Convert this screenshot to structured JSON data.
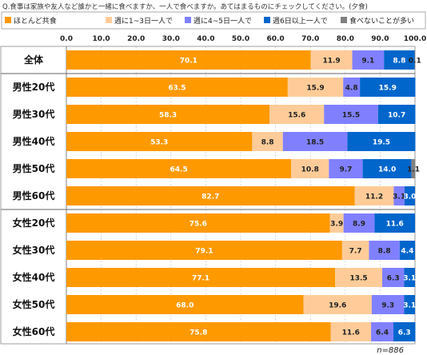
{
  "chart_data": {
    "type": "bar",
    "stacked": true,
    "orientation": "horizontal",
    "title": "Q.食事は家族や友人など誰かと一緒に食べますか、一人で食べますか。あてはまるものにチェックしてください。(夕食)",
    "categories": [
      "全体",
      "男性20代",
      "男性30代",
      "男性40代",
      "男性50代",
      "男性60代",
      "女性20代",
      "女性30代",
      "女性40代",
      "女性50代",
      "女性60代"
    ],
    "group_breaks_after": [
      0,
      5
    ],
    "series": [
      {
        "name": "ほとんど共食",
        "color": "#FF9900",
        "label_color": "#ffffff",
        "values": [
          70.1,
          63.5,
          58.3,
          53.3,
          64.5,
          82.7,
          75.6,
          79.1,
          77.1,
          68.0,
          75.8
        ]
      },
      {
        "name": "週に1~3日一人で",
        "color": "#FFCC99",
        "label_color": "#222222",
        "values": [
          11.9,
          15.9,
          15.6,
          8.8,
          10.8,
          11.2,
          3.9,
          7.7,
          13.5,
          19.6,
          11.6
        ]
      },
      {
        "name": "週に4~5日一人で",
        "color": "#8080FF",
        "label_color": "#222222",
        "values": [
          9.1,
          4.8,
          15.5,
          18.5,
          9.7,
          3.1,
          8.9,
          8.8,
          6.3,
          9.3,
          6.4
        ]
      },
      {
        "name": "週6日以上一人で",
        "color": "#0066CC",
        "label_color": "#ffffff",
        "values": [
          8.8,
          15.9,
          10.7,
          19.5,
          14.0,
          3.0,
          11.6,
          4.4,
          3.1,
          3.1,
          6.3
        ]
      },
      {
        "name": "食べないことが多い",
        "color": "#808080",
        "label_color": "#222222",
        "values": [
          0.1,
          0.0,
          0.0,
          0.0,
          1.1,
          0.0,
          0.0,
          0.0,
          0.0,
          0.0,
          0.0
        ]
      }
    ],
    "value_labels": [
      [
        "70.1",
        "11.9",
        "9.1",
        "8.8",
        "0.1"
      ],
      [
        "63.5",
        "15.9",
        "4.8",
        "15.9",
        ""
      ],
      [
        "58.3",
        "15.6",
        "15.5",
        "10.7",
        ""
      ],
      [
        "53.3",
        "8.8",
        "18.5",
        "19.5",
        ""
      ],
      [
        "64.5",
        "10.8",
        "9.7",
        "14.0",
        "1.1"
      ],
      [
        "82.7",
        "11.2",
        "3.1",
        "3.0",
        ""
      ],
      [
        "75.6",
        "3.9",
        "8.9",
        "11.6",
        ""
      ],
      [
        "79.1",
        "7.7",
        "8.8",
        "4.4",
        ""
      ],
      [
        "77.1",
        "13.5",
        "6.3",
        "3.1",
        ""
      ],
      [
        "68.0",
        "19.6",
        "9.3",
        "3.1",
        ""
      ],
      [
        "75.8",
        "11.6",
        "6.4",
        "6.3",
        ""
      ]
    ],
    "xlim": [
      0,
      100
    ],
    "x_ticks": [
      "0.0",
      "10.0",
      "20.0",
      "30.0",
      "40.0",
      "50.0",
      "60.0",
      "70.0",
      "80.0",
      "90.0",
      "100.0"
    ],
    "legend_position": "top",
    "note": "n=886"
  }
}
